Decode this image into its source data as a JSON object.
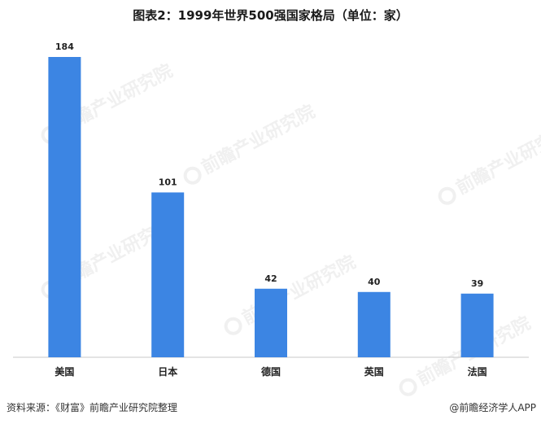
{
  "title": "图表2：1999年世界500强国家格局（单位：家）",
  "source": "资料来源：《财富》前瞻产业研究院整理",
  "brand": "@前瞻经济学人APP",
  "watermark": {
    "text": "前瞻产业研究院"
  },
  "colors": {
    "bar": "#3c85e3",
    "axis": "#c8c8c8"
  },
  "chart_data": {
    "type": "bar",
    "title": "图表2：1999年世界500强国家格局（单位：家）",
    "categories": [
      "美国",
      "日本",
      "德国",
      "英国",
      "法国"
    ],
    "values": [
      184,
      101,
      42,
      40,
      39
    ],
    "xlabel": "",
    "ylabel": "",
    "ylim": [
      0,
      184
    ],
    "grid": false,
    "legend": "none",
    "data_labels": true
  }
}
